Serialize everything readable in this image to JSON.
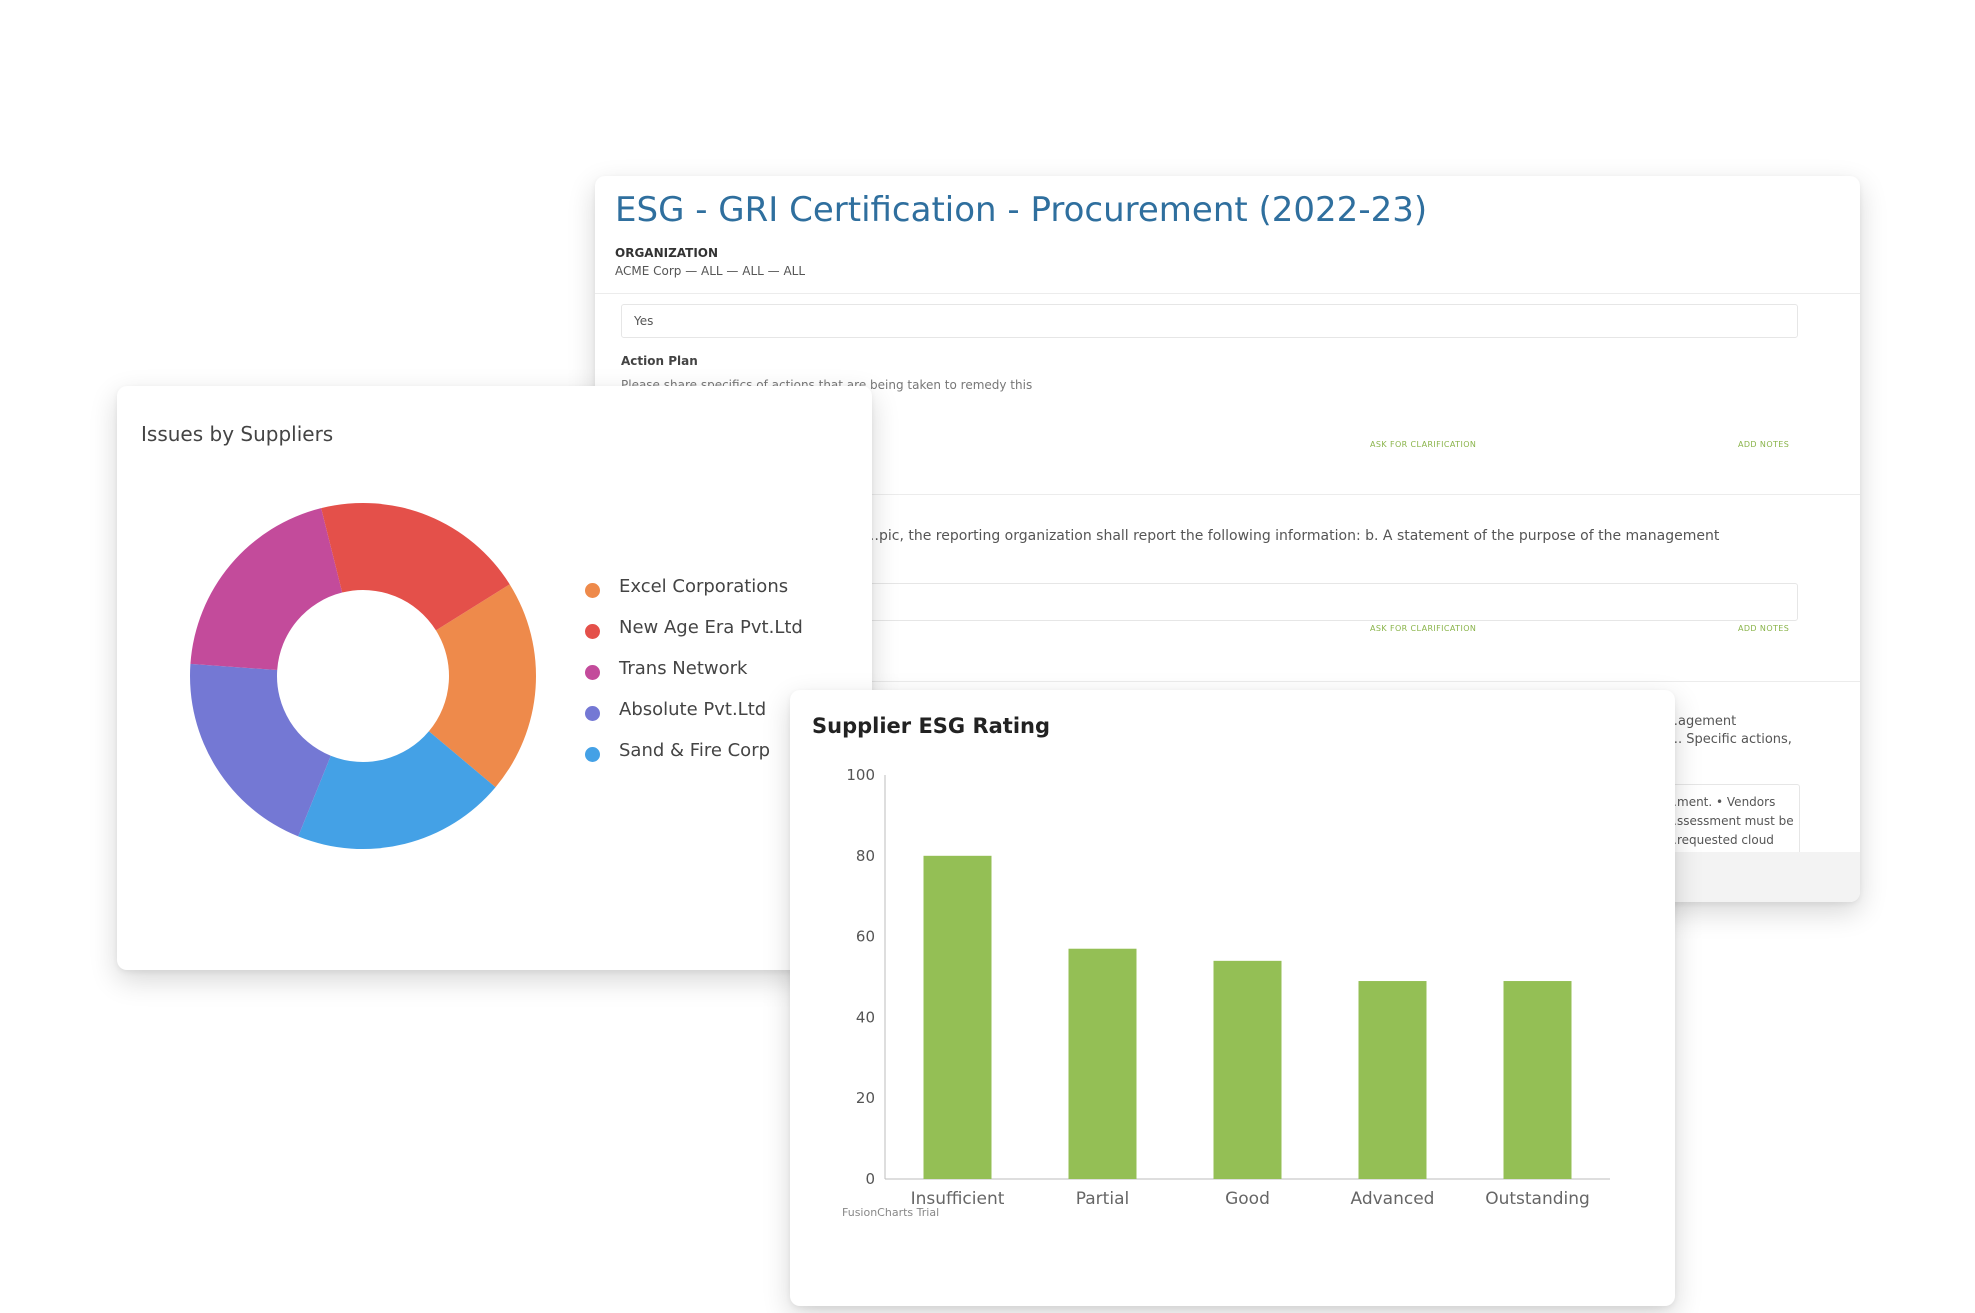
{
  "document": {
    "title": "ESG - GRI Certification - Procurement (2022-23)",
    "org_label": "ORGANIZATION",
    "org_path": "ACME Corp — ALL — ALL — ALL",
    "answer_value": "Yes",
    "action_plan_label": "Action Plan",
    "action_plan_help": "Please share specifics of actions that are being taken to remedy this",
    "ask_for_clarification": "ASK FOR CLARIFICATION",
    "add_notes": "ADD NOTES",
    "question_2_text": "…pic, the reporting organization shall report the following information: b. A statement of the purpose of the management",
    "question_3_fragment_1": "…agement",
    "question_3_fragment_2": "…. Specific actions,",
    "answer_3_fragment_1": "…ment. • Vendors",
    "answer_3_fragment_2": "…ssessment must be",
    "answer_3_fragment_3": "…requested cloud"
  },
  "donut": {
    "title": "Issues by Suppliers",
    "chart_data": {
      "type": "pie",
      "style": "donut",
      "title": "Issues by Suppliers",
      "legend_position": "right",
      "slices": [
        {
          "label": "Excel Corporations",
          "value": 20,
          "color": "#ee8a4b"
        },
        {
          "label": "New Age Era Pvt.Ltd",
          "value": 20,
          "color": "#e4504a"
        },
        {
          "label": "Trans Network",
          "value": 20,
          "color": "#c34b9b"
        },
        {
          "label": "Absolute Pvt.Ltd",
          "value": 20,
          "color": "#7478d4"
        },
        {
          "label": "Sand & Fire Corp",
          "value": 20,
          "color": "#44a1e6"
        }
      ]
    }
  },
  "bar": {
    "title": "Supplier ESG Rating",
    "watermark": "FusionCharts Trial",
    "chart_data": {
      "type": "bar",
      "title": "Supplier ESG Rating",
      "categories": [
        "Insufficient",
        "Partial",
        "Good",
        "Advanced",
        "Outstanding"
      ],
      "values": [
        80,
        57,
        54,
        49,
        49
      ],
      "ylim": [
        0,
        100
      ],
      "yticks": [
        0,
        20,
        40,
        60,
        80,
        100
      ],
      "color": "#94bf55",
      "grid": false
    }
  }
}
